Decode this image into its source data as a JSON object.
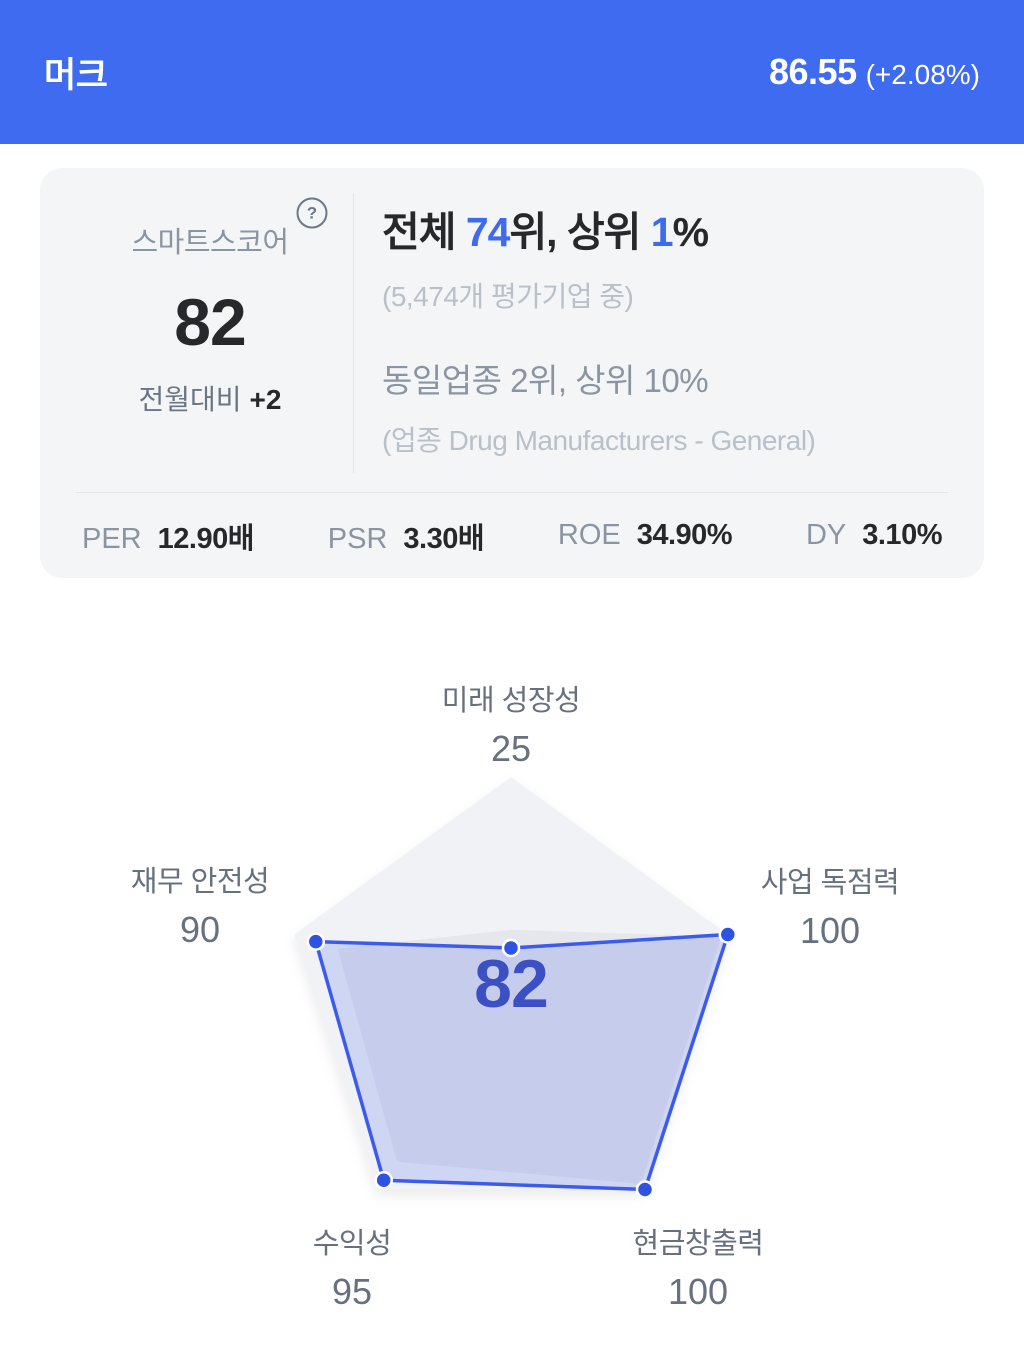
{
  "header": {
    "title": "머크",
    "price": "86.55",
    "change": "(+2.08%)"
  },
  "score_card": {
    "score_label": "스마트스코어",
    "help_icon": "?",
    "score": "82",
    "mom_label": "전월대비",
    "mom_change": "+2",
    "rank_line": [
      "전체 ",
      "74",
      "위, 상위 ",
      "1",
      "%"
    ],
    "overall_note": "(5,474개 평가기업 중)",
    "industry_line": "동일업종 2위, 상위 10%",
    "industry_note": "(업종 Drug Manufacturers - General)",
    "metrics": [
      {
        "label": "PER",
        "value": "12.90배"
      },
      {
        "label": "PSR",
        "value": "3.30배"
      },
      {
        "label": "ROE",
        "value": "34.90%"
      },
      {
        "label": "DY",
        "value": "3.10%"
      }
    ]
  },
  "chart_data": {
    "type": "radar",
    "title": "스마트스코어 5각형 레이더",
    "center_score": "82",
    "max": 100,
    "axes": [
      {
        "label": "미래 성장성",
        "value": 25
      },
      {
        "label": "사업 독점력",
        "value": 100
      },
      {
        "label": "현금창출력",
        "value": 100
      },
      {
        "label": "수익성",
        "value": 95
      },
      {
        "label": "재무 안전성",
        "value": 90
      }
    ],
    "secondary_values": [
      33,
      97,
      97,
      85,
      80
    ],
    "legend": "off",
    "grid": "pentagon-outline-only",
    "colors": {
      "header_blue": "#3E6BEF",
      "accent_blue": "#3D6AEE",
      "grid_fill": "#F1F2F6",
      "secondary_fill": "#E5E7EC",
      "series_fill": "rgba(77,106,238,0.20)",
      "series_stroke": "#3D5BEB",
      "dot_fill": "#2E52E4",
      "score_text": "#3C50C4",
      "axis_text": "#67707E"
    }
  }
}
